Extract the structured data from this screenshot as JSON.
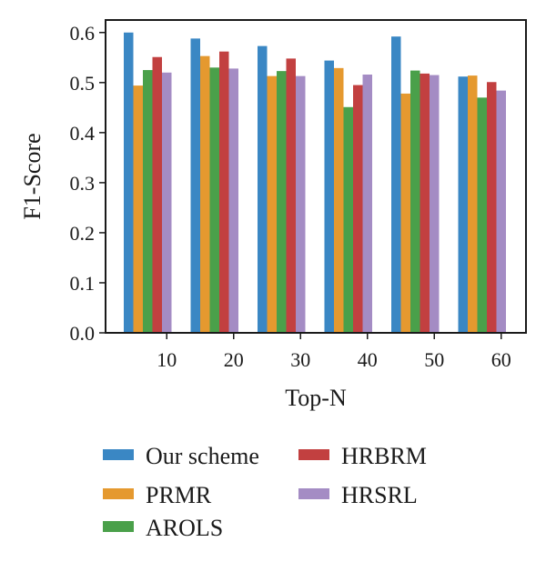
{
  "chart_data": {
    "type": "bar",
    "xlabel": "Top-N",
    "ylabel": "F1-Score",
    "categories": [
      "10",
      "20",
      "30",
      "40",
      "50",
      "60"
    ],
    "ylim": [
      0.0,
      0.625
    ],
    "yticks": [
      0.0,
      0.1,
      0.2,
      0.3,
      0.4,
      0.5,
      0.6
    ],
    "ytick_labels": [
      "0.0",
      "0.1",
      "0.2",
      "0.3",
      "0.4",
      "0.5",
      "0.6"
    ],
    "grid": false,
    "legend_placement": "bottom",
    "series": [
      {
        "name": "Our scheme",
        "color": "#3a87c4",
        "values": [
          0.6,
          0.588,
          0.573,
          0.544,
          0.592,
          0.512
        ]
      },
      {
        "name": "PRMR",
        "color": "#e5992f",
        "values": [
          0.494,
          0.553,
          0.513,
          0.529,
          0.478,
          0.514
        ]
      },
      {
        "name": "AROLS",
        "color": "#4aa04a",
        "values": [
          0.525,
          0.53,
          0.523,
          0.451,
          0.524,
          0.47
        ]
      },
      {
        "name": "HRBRM",
        "color": "#c24040",
        "values": [
          0.551,
          0.562,
          0.548,
          0.495,
          0.518,
          0.501
        ]
      },
      {
        "name": "HRSRL",
        "color": "#a48cc4",
        "values": [
          0.52,
          0.528,
          0.513,
          0.516,
          0.515,
          0.484
        ]
      }
    ]
  }
}
